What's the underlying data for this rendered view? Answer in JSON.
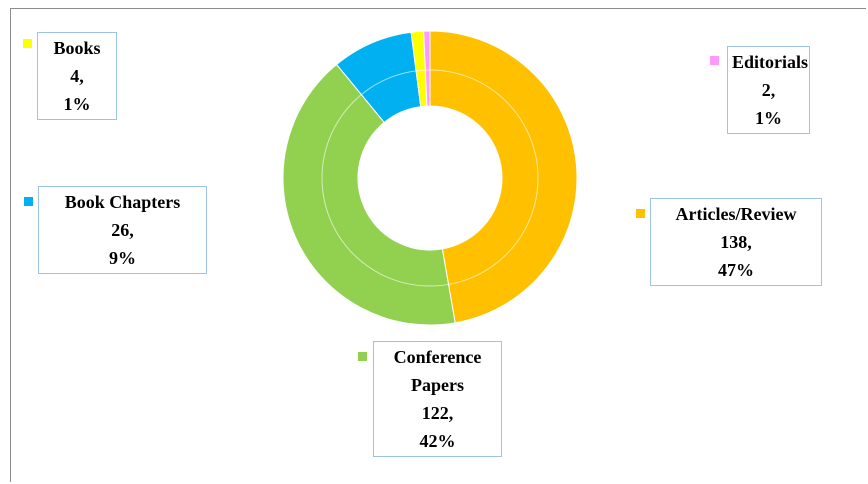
{
  "chart_data": {
    "type": "donut",
    "categories": [
      "Articles/Review",
      "Conference Papers",
      "Book Chapters",
      "Books",
      "Editorials"
    ],
    "values": [
      138,
      122,
      26,
      4,
      2
    ],
    "value_labels": [
      "138,",
      "122,",
      "26,",
      "4,",
      "2,"
    ],
    "percents": [
      47,
      42,
      9,
      1,
      1
    ],
    "percent_labels": [
      "47%",
      "42%",
      "9%",
      "1%",
      "1%"
    ],
    "colors": [
      "#ffc000",
      "#92d050",
      "#00b0f0",
      "#ffff00",
      "#ff99ff"
    ]
  }
}
